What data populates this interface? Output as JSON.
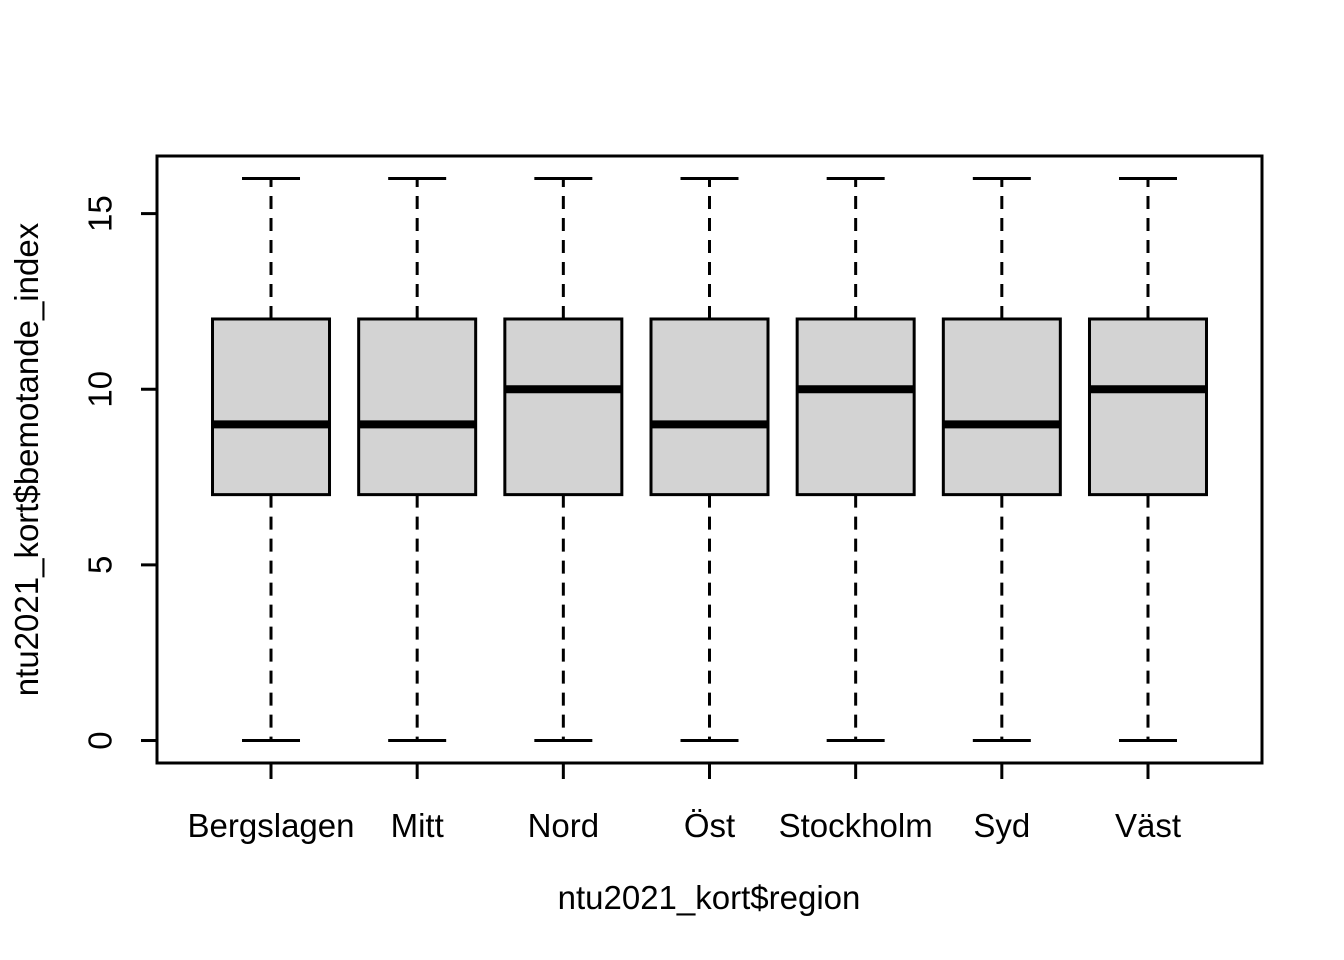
{
  "chart_data": {
    "type": "boxplot",
    "title": "",
    "xlabel": "ntu2021_kort$region",
    "ylabel": "ntu2021_kort$bemotande_index",
    "categories": [
      "Bergslagen",
      "Mitt",
      "Nord",
      "Öst",
      "Stockholm",
      "Syd",
      "Väst"
    ],
    "boxes": [
      {
        "category": "Bergslagen",
        "whisker_low": 0,
        "q1": 7,
        "median": 9,
        "q3": 12,
        "whisker_high": 16
      },
      {
        "category": "Mitt",
        "whisker_low": 0,
        "q1": 7,
        "median": 9,
        "q3": 12,
        "whisker_high": 16
      },
      {
        "category": "Nord",
        "whisker_low": 0,
        "q1": 7,
        "median": 10,
        "q3": 12,
        "whisker_high": 16
      },
      {
        "category": "Öst",
        "whisker_low": 0,
        "q1": 7,
        "median": 9,
        "q3": 12,
        "whisker_high": 16
      },
      {
        "category": "Stockholm",
        "whisker_low": 0,
        "q1": 7,
        "median": 10,
        "q3": 12,
        "whisker_high": 16
      },
      {
        "category": "Syd",
        "whisker_low": 0,
        "q1": 7,
        "median": 9,
        "q3": 12,
        "whisker_high": 16
      },
      {
        "category": "Väst",
        "whisker_low": 0,
        "q1": 7,
        "median": 10,
        "q3": 12,
        "whisker_high": 16
      }
    ],
    "yticks": [
      0,
      5,
      10,
      15
    ],
    "ylim": [
      0,
      16
    ],
    "grid": false,
    "legend": "none",
    "whisker_style": "dashed",
    "colors": {
      "box_fill": "#d3d3d3",
      "line": "#000000",
      "text": "#000000",
      "background": "#ffffff"
    }
  }
}
